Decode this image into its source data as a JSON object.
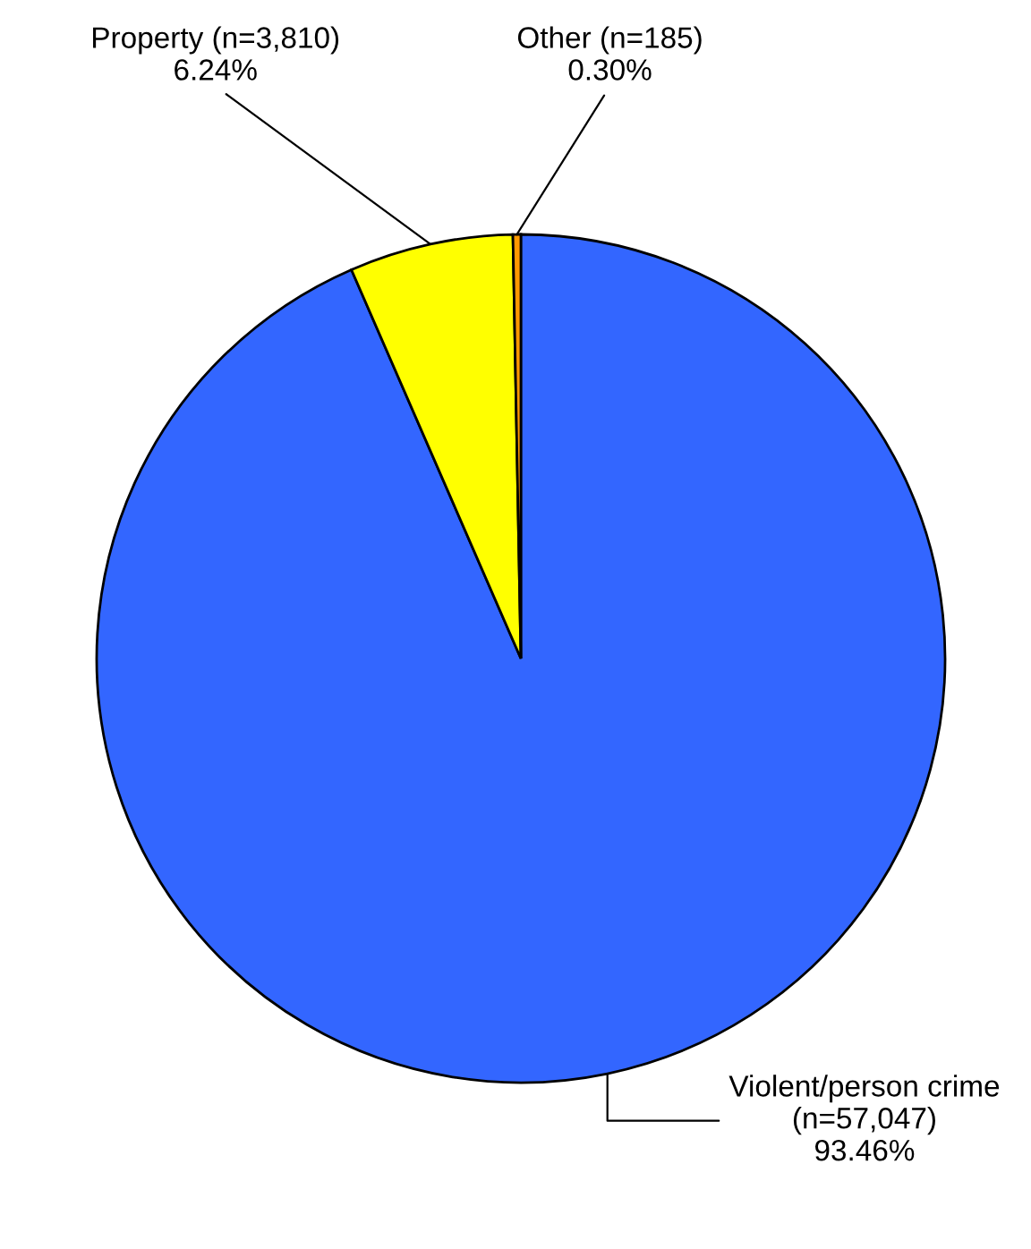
{
  "chart_data": {
    "type": "pie",
    "categories": [
      "Violent/person crime (n=57,047)",
      "Property (n=3,810)",
      "Other (n=185)"
    ],
    "values": [
      93.46,
      6.24,
      0.3
    ],
    "value_labels": [
      "93.46%",
      "6.24%",
      "0.30%"
    ],
    "colors": [
      "#3366ff",
      "#ffff00",
      "#ff9900"
    ],
    "legend": false
  }
}
